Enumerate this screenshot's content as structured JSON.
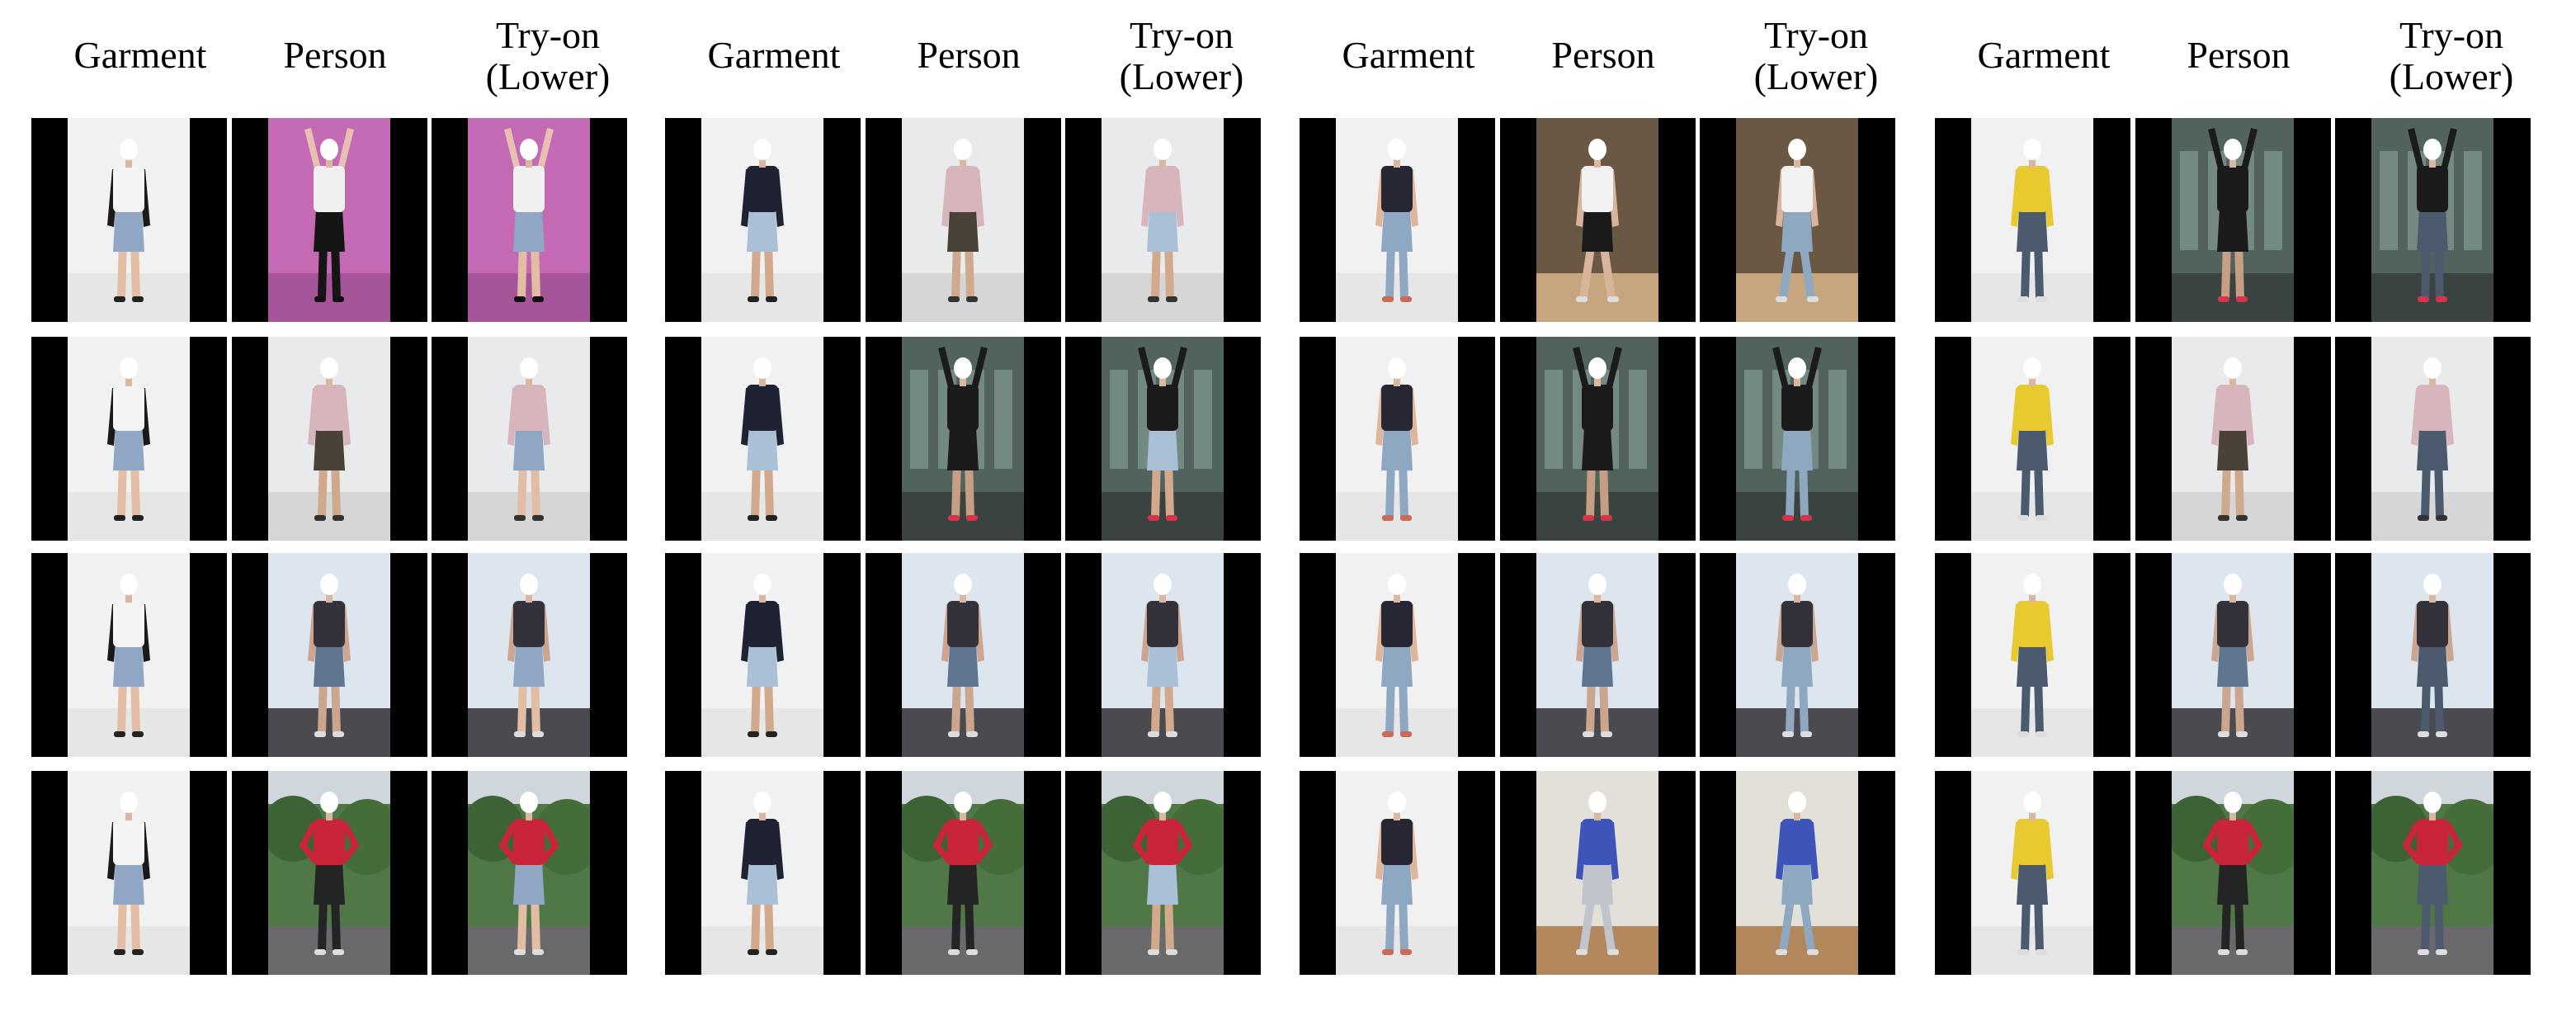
{
  "figure": {
    "column_labels": [
      "Garment",
      "Person",
      "Try-on\n(Lower)"
    ],
    "colors": {
      "background": "#ffffff",
      "letterbox": "#000000"
    },
    "sources": [
      {
        "name": "skirt-model",
        "top": "#f4f4f4",
        "sleeve": "#1a1a1a",
        "bottom": "#8fa7c4",
        "legs": "#e2bda3",
        "shoes": "#222222"
      },
      {
        "name": "shorts-model",
        "top": "#1e2233",
        "sleeve": "#1e2233",
        "bottom": "#a9c0d6",
        "legs": "#d3a98d",
        "shoes": "#222222"
      },
      {
        "name": "jeans-model",
        "top": "#262634",
        "sleeve": "#e0b69a",
        "bottom": "#8ea8c2",
        "legs": "#8ea8c2",
        "shoes": "#cc6b55"
      },
      {
        "name": "yellow-top-model",
        "top": "#e9c930",
        "sleeve": "#e9c930",
        "bottom": "#4c5a6e",
        "legs": "#4c5a6e",
        "shoes": "#dddddd"
      }
    ],
    "persons": [
      {
        "name": "pink-room",
        "bg": "#c46ab4",
        "floor": "#a7559a",
        "top": "#f0f0f0",
        "sleeve": "#e6c0b0",
        "bottom": "#151515",
        "legs": "#151515",
        "shoes": "#111111",
        "pose": "arms-up"
      },
      {
        "name": "kitchen",
        "bg": "#e9eaec",
        "floor": "#d6d6d8",
        "top": "#d8b4bd",
        "sleeve": "#d8b4bd",
        "bottom": "#4a4236",
        "legs": "#d0a88e",
        "shoes": "#333333",
        "pose": "stand"
      },
      {
        "name": "dark-room",
        "bg": "#6a5845",
        "floor": "#c6a57f",
        "top": "#f2f2f2",
        "sleeve": "#d9b39b",
        "bottom": "#1a1a1a",
        "legs": "#d9b39b",
        "shoes": "#dddddd",
        "pose": "wide"
      },
      {
        "name": "window",
        "bg": "#52625d",
        "floor": "#3b4340",
        "top": "#1b1b1b",
        "sleeve": "#1b1b1b",
        "bottom": "#1b1b1b",
        "legs": "#c69e86",
        "shoes": "#d8334a",
        "pose": "arms-up"
      },
      {
        "name": "white-wall",
        "bg": "#dde6ee",
        "floor": "#4a4a50",
        "top": "#33323a",
        "sleeve": "#cba58d",
        "bottom": "#5f7590",
        "legs": "#cba58d",
        "shoes": "#dddddd",
        "pose": "stand"
      },
      {
        "name": "outdoor",
        "bg": "#4f7846",
        "floor": "#6a6a6c",
        "top": "#c8243a",
        "sleeve": "#c8243a",
        "bottom": "#242424",
        "legs": "#242424",
        "shoes": "#dddddd",
        "pose": "hands-hips"
      },
      {
        "name": "studio-jacket",
        "bg": "#e2e0d8",
        "floor": "#b3875c",
        "top": "#3d55b8",
        "sleeve": "#3d55b8",
        "bottom": "#c0c4cc",
        "legs": "#c0c4cc",
        "shoes": "#dddddd",
        "pose": "wide"
      }
    ],
    "rows": [
      [
        {
          "source": 0,
          "person": 0
        },
        {
          "source": 1,
          "person": 1
        },
        {
          "source": 2,
          "person": 2
        },
        {
          "source": 3,
          "person": 3
        }
      ],
      [
        {
          "source": 0,
          "person": 1
        },
        {
          "source": 1,
          "person": 3
        },
        {
          "source": 2,
          "person": 3
        },
        {
          "source": 3,
          "person": 1
        }
      ],
      [
        {
          "source": 0,
          "person": 4
        },
        {
          "source": 1,
          "person": 4
        },
        {
          "source": 2,
          "person": 4
        },
        {
          "source": 3,
          "person": 4
        }
      ],
      [
        {
          "source": 0,
          "person": 5
        },
        {
          "source": 1,
          "person": 5
        },
        {
          "source": 2,
          "person": 6
        },
        {
          "source": 3,
          "person": 5
        }
      ]
    ]
  }
}
